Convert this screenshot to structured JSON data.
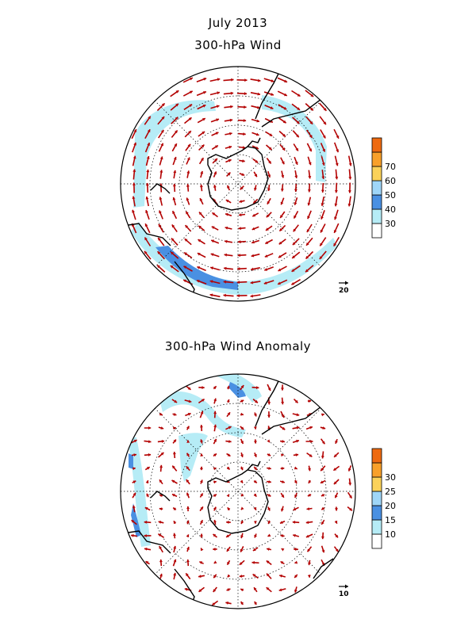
{
  "figure": {
    "title": "July 2013"
  },
  "panels": [
    {
      "title": "300-hPa Wind",
      "colorbar_levels": [
        "30",
        "40",
        "50",
        "60",
        "70"
      ],
      "colorbar_colors": [
        "#ffffff",
        "#b6ecf6",
        "#4a90e2",
        "#9fd6f8",
        "#fbd25a",
        "#f8a02a",
        "#ee6a10"
      ],
      "reference_vector": "20",
      "field": "mean wind",
      "vector_color": "#b30000",
      "shade_colors": {
        "light": "#b6ecf6",
        "dark": "#4a90e2"
      }
    },
    {
      "title": "300-hPa Wind Anomaly",
      "colorbar_levels": [
        "10",
        "15",
        "20",
        "25",
        "30"
      ],
      "colorbar_colors": [
        "#ffffff",
        "#b6ecf6",
        "#4a90e2",
        "#9fd6f8",
        "#fbd25a",
        "#f8a02a",
        "#ee6a10"
      ],
      "reference_vector": "10",
      "field": "anomaly",
      "vector_color": "#b30000",
      "shade_colors": {
        "light": "#b6ecf6",
        "dark": "#4a90e2"
      }
    }
  ],
  "map": {
    "projection": "south polar stereographic",
    "coastline_color": "#000000",
    "graticule": "dotted"
  }
}
